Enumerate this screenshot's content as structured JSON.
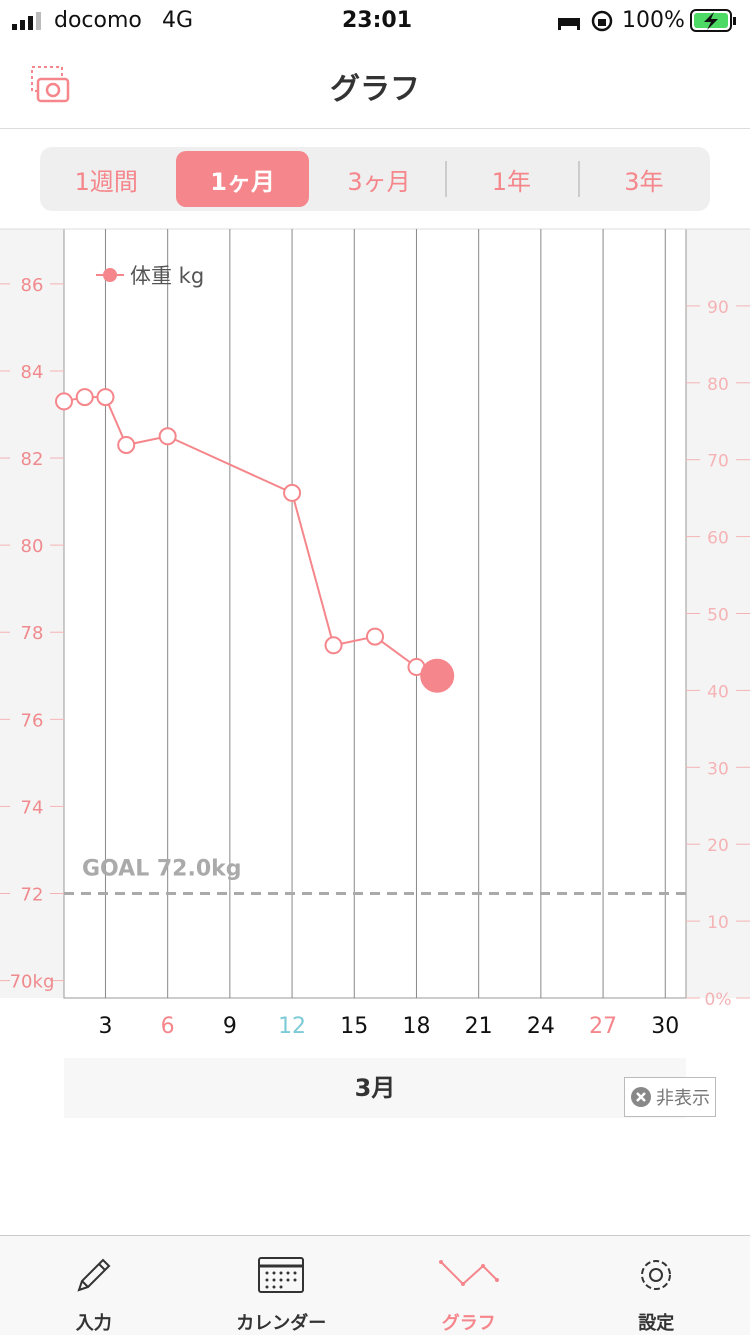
{
  "status_bar": {
    "carrier": "docomo",
    "network": "4G",
    "time": "23:01",
    "battery": "100%"
  },
  "header": {
    "title": "グラフ"
  },
  "tabs": {
    "items": [
      "1週間",
      "1ヶ月",
      "3ヶ月",
      "1年",
      "3年"
    ],
    "selected": 1
  },
  "chart_data": {
    "type": "line",
    "x": [
      1,
      2,
      3,
      4,
      6,
      12,
      14,
      16,
      18,
      19
    ],
    "series": [
      {
        "name": "体重 kg",
        "color": "#f5868b",
        "values": [
          83.3,
          83.4,
          83.4,
          82.3,
          82.5,
          81.2,
          77.7,
          77.9,
          77.2,
          77.0
        ]
      }
    ],
    "xlim": [
      1,
      31
    ],
    "xticks": [
      3,
      6,
      9,
      12,
      15,
      18,
      21,
      24,
      27,
      30
    ],
    "xtick_colors": [
      "#111111",
      "#f5868b",
      "#111111",
      "#7dcbd6",
      "#111111",
      "#111111",
      "#111111",
      "#111111",
      "#f5868b",
      "#111111"
    ],
    "ylim": [
      69.6,
      87.26
    ],
    "yticks": [
      {
        "value": 70,
        "label": "70kg"
      },
      72,
      74,
      76,
      78,
      80,
      82,
      84,
      86
    ],
    "y2lim": [
      0,
      100
    ],
    "y2ticks": [
      {
        "value": 0,
        "label": "0%"
      },
      10,
      20,
      30,
      40,
      50,
      60,
      70,
      80,
      90
    ],
    "goal": {
      "value": 72,
      "label": "GOAL 72.0kg"
    },
    "grid": true
  },
  "month_label": "3月",
  "hide_button": "非表示",
  "tab_bar": {
    "items": [
      "入力",
      "カレンダー",
      "グラフ",
      "設定"
    ],
    "active": 2
  }
}
